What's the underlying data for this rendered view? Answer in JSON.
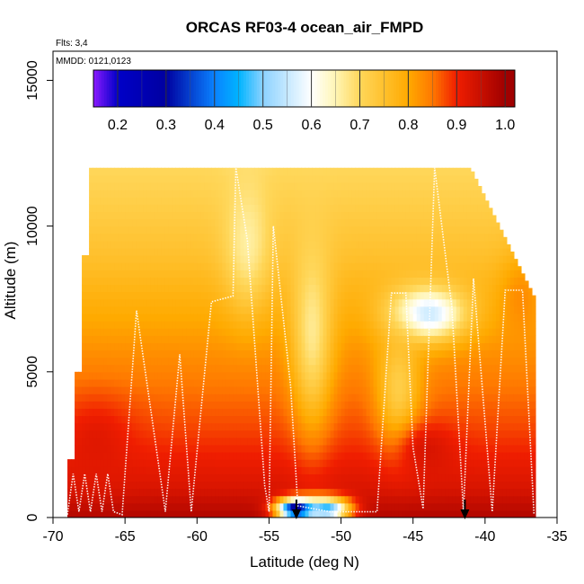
{
  "chart_data": {
    "type": "heatmap",
    "title": "ORCAS RF03-4 ocean_air_FMPD",
    "annotations": [
      "Flts: 3,4",
      "MMDD: 0121,0123"
    ],
    "xlabel": "Latitude (deg N)",
    "ylabel": "Altitude (m)",
    "xlim": [
      -70,
      -35
    ],
    "ylim": [
      0,
      16000
    ],
    "xticks": [
      -70,
      -65,
      -60,
      -55,
      -50,
      -45,
      -40,
      -35
    ],
    "yticks": [
      0,
      5000,
      10000,
      15000
    ],
    "colorbar": {
      "min": 0.15,
      "max": 1.02,
      "ticks": [
        0.2,
        0.3,
        0.4,
        0.5,
        0.6,
        0.7,
        0.8,
        0.9,
        1.0
      ],
      "stops": [
        {
          "v": 0.15,
          "color": "#8b1aff"
        },
        {
          "v": 0.2,
          "color": "#0000c8"
        },
        {
          "v": 0.3,
          "color": "#0000a0"
        },
        {
          "v": 0.4,
          "color": "#0a82ff"
        },
        {
          "v": 0.45,
          "color": "#00b4ff"
        },
        {
          "v": 0.5,
          "color": "#8cd2ff"
        },
        {
          "v": 0.6,
          "color": "#ffffff"
        },
        {
          "v": 0.65,
          "color": "#fff5b4"
        },
        {
          "v": 0.7,
          "color": "#ffd75a"
        },
        {
          "v": 0.8,
          "color": "#ffaa00"
        },
        {
          "v": 0.85,
          "color": "#ff7800"
        },
        {
          "v": 0.9,
          "color": "#f01e00"
        },
        {
          "v": 1.0,
          "color": "#a00000"
        }
      ]
    },
    "grid": false,
    "heat_profile": [
      {
        "alt": 0,
        "v": 0.98
      },
      {
        "alt": 1000,
        "v": 0.93
      },
      {
        "alt": 3000,
        "v": 0.88
      },
      {
        "alt": 6000,
        "v": 0.82
      },
      {
        "alt": 9000,
        "v": 0.75
      },
      {
        "alt": 12000,
        "v": 0.7
      }
    ],
    "heat_features": [
      {
        "lat": -53,
        "alt": 300,
        "rx": 1.4,
        "ry": 350,
        "v": 0.2
      },
      {
        "lat": -51,
        "alt": 300,
        "rx": 1.6,
        "ry": 400,
        "v": 0.45
      },
      {
        "lat": -44,
        "alt": 7000,
        "rx": 2.6,
        "ry": 900,
        "v": 0.55
      },
      {
        "lat": -56.5,
        "alt": 9500,
        "rx": 1.6,
        "ry": 2200,
        "v": 0.66
      },
      {
        "lat": -52,
        "alt": 6500,
        "rx": 1.4,
        "ry": 3200,
        "v": 0.67
      },
      {
        "lat": -46,
        "alt": 4500,
        "rx": 1.5,
        "ry": 2000,
        "v": 0.72
      },
      {
        "lat": -44,
        "alt": 2300,
        "rx": 2.0,
        "ry": 900,
        "v": 0.93
      },
      {
        "lat": -67,
        "alt": 2500,
        "rx": 2.5,
        "ry": 1500,
        "v": 0.92
      },
      {
        "lat": -37.5,
        "alt": 7500,
        "rx": 1.5,
        "ry": 1500,
        "v": 0.83
      }
    ],
    "flight_track": [
      [
        -69,
        100
      ],
      [
        -68.6,
        1500
      ],
      [
        -68.2,
        200
      ],
      [
        -67.8,
        1500
      ],
      [
        -67.4,
        200
      ],
      [
        -67.0,
        1500
      ],
      [
        -66.6,
        200
      ],
      [
        -66.2,
        1500
      ],
      [
        -65.8,
        200
      ],
      [
        -65.2,
        100
      ],
      [
        -64.2,
        7100
      ],
      [
        -62.2,
        200
      ],
      [
        -61.2,
        5600
      ],
      [
        -60.4,
        200
      ],
      [
        -59.0,
        7400
      ],
      [
        -57.5,
        7600
      ],
      [
        -57.3,
        12000
      ],
      [
        -56.5,
        9500
      ],
      [
        -55.3,
        1100
      ],
      [
        -55.0,
        200
      ],
      [
        -54.7,
        10000
      ],
      [
        -53.5,
        4500
      ],
      [
        -53.0,
        400
      ],
      [
        -50.8,
        200
      ],
      [
        -47.5,
        200
      ],
      [
        -46.5,
        7700
      ],
      [
        -45.5,
        7700
      ],
      [
        -45.0,
        2400
      ],
      [
        -44.3,
        300
      ],
      [
        -43.5,
        12000
      ],
      [
        -42.3,
        7200
      ],
      [
        -41.5,
        200
      ],
      [
        -40.8,
        8200
      ],
      [
        -39.5,
        200
      ],
      [
        -38.6,
        7800
      ],
      [
        -37.4,
        7800
      ],
      [
        -36.6,
        100
      ]
    ],
    "markers": [
      {
        "lat": -53.1,
        "label": "↓"
      },
      {
        "lat": -41.4,
        "label": "↓"
      }
    ]
  }
}
